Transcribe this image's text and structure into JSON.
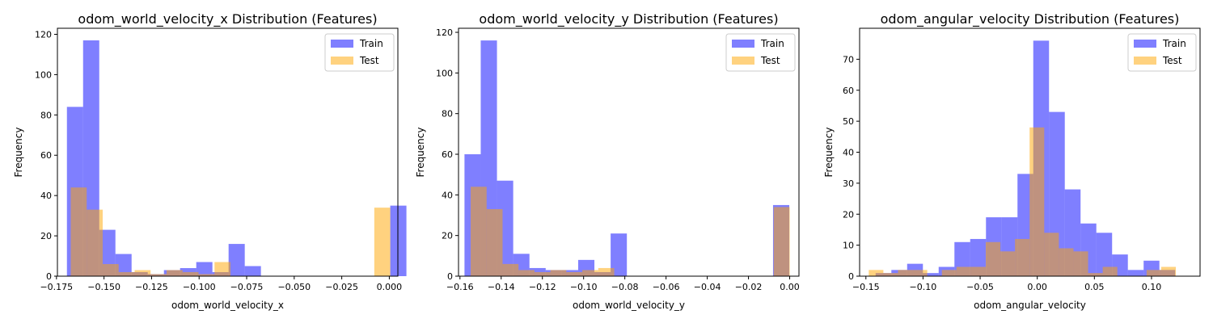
{
  "chart_data": [
    {
      "type": "bar",
      "title": "odom_world_velocity_x Distribution (Features)",
      "xlabel": "odom_world_velocity_x",
      "ylabel": "Frequency",
      "xlim": [
        -0.1745,
        0.0045
      ],
      "ylim": [
        0,
        123
      ],
      "xticks": [
        -0.175,
        -0.15,
        -0.125,
        -0.1,
        -0.075,
        -0.05,
        -0.025,
        0.0
      ],
      "xtick_labels": [
        "−0.175",
        "−0.150",
        "−0.125",
        "−0.100",
        "−0.075",
        "−0.050",
        "−0.025",
        "0.000"
      ],
      "yticks": [
        0,
        20,
        40,
        60,
        80,
        100,
        120
      ],
      "ytick_labels": [
        "0",
        "20",
        "40",
        "60",
        "80",
        "100",
        "120"
      ],
      "grid": false,
      "legend_position": "top-right",
      "series": [
        {
          "name": "Train",
          "color": "#0000ff",
          "opacity": 0.5,
          "bin_start": -0.1695,
          "bin_width": 0.0085,
          "counts": [
            84,
            117,
            23,
            11,
            2,
            1,
            3,
            4,
            7,
            2,
            16,
            5,
            0,
            0,
            0,
            0,
            0,
            0,
            0,
            0,
            35
          ]
        },
        {
          "name": "Test",
          "color": "#ffa500",
          "opacity": 0.5,
          "bin_start": -0.1675,
          "bin_width": 0.0084,
          "counts": [
            44,
            33,
            6,
            2,
            3,
            1,
            3,
            2,
            1,
            7,
            0,
            0,
            0,
            0,
            0,
            0,
            0,
            0,
            0,
            34
          ]
        }
      ]
    },
    {
      "type": "bar",
      "title": "odom_world_velocity_y Distribution (Features)",
      "xlabel": "odom_world_velocity_y",
      "ylabel": "Frequency",
      "xlim": [
        -0.1607,
        0.0045
      ],
      "ylim": [
        0,
        122
      ],
      "xticks": [
        -0.16,
        -0.14,
        -0.12,
        -0.1,
        -0.08,
        -0.06,
        -0.04,
        -0.02,
        0.0
      ],
      "xtick_labels": [
        "−0.16",
        "−0.14",
        "−0.12",
        "−0.10",
        "−0.08",
        "−0.06",
        "−0.04",
        "−0.02",
        "0.00"
      ],
      "yticks": [
        0,
        20,
        40,
        60,
        80,
        100,
        120
      ],
      "ytick_labels": [
        "0",
        "20",
        "40",
        "60",
        "80",
        "100",
        "120"
      ],
      "grid": false,
      "legend_position": "top-right",
      "series": [
        {
          "name": "Train",
          "color": "#0000ff",
          "opacity": 0.5,
          "bin_start": -0.1578,
          "bin_width": 0.00788,
          "counts": [
            60,
            116,
            47,
            11,
            4,
            3,
            3,
            8,
            2,
            21,
            0,
            0,
            0,
            0,
            0,
            0,
            0,
            0,
            0,
            35
          ]
        },
        {
          "name": "Test",
          "color": "#ffa500",
          "opacity": 0.5,
          "bin_start": -0.1548,
          "bin_width": 0.00774,
          "counts": [
            44,
            33,
            6,
            3,
            2,
            3,
            2,
            3,
            4,
            0,
            0,
            0,
            0,
            0,
            0,
            0,
            0,
            0,
            0,
            34
          ]
        }
      ]
    },
    {
      "type": "bar",
      "title": "odom_angular_velocity Distribution (Features)",
      "xlabel": "odom_angular_velocity",
      "ylabel": "Frequency",
      "xlim": [
        -0.1555,
        0.1425
      ],
      "ylim": [
        0,
        80
      ],
      "xticks": [
        -0.15,
        -0.1,
        -0.05,
        0.0,
        0.05,
        0.1
      ],
      "xtick_labels": [
        "−0.15",
        "−0.10",
        "−0.05",
        "0.00",
        "0.05",
        "0.10"
      ],
      "yticks": [
        0,
        10,
        20,
        30,
        40,
        50,
        60,
        70
      ],
      "ytick_labels": [
        "0",
        "10",
        "20",
        "30",
        "40",
        "50",
        "60",
        "70"
      ],
      "grid": false,
      "legend_position": "top-right",
      "series": [
        {
          "name": "Train",
          "color": "#0000ff",
          "opacity": 0.5,
          "bin_start": -0.1415,
          "bin_width": 0.0138,
          "counts": [
            1,
            2,
            4,
            1,
            3,
            11,
            12,
            19,
            19,
            33,
            76,
            53,
            28,
            17,
            14,
            7,
            2,
            5,
            2
          ]
        },
        {
          "name": "Test",
          "color": "#ffa500",
          "opacity": 0.5,
          "bin_start": -0.1475,
          "bin_width": 0.0128,
          "counts": [
            2,
            1,
            2,
            2,
            0,
            2,
            3,
            3,
            11,
            8,
            12,
            48,
            14,
            9,
            8,
            1,
            3,
            0,
            0,
            2,
            3
          ]
        }
      ]
    }
  ]
}
